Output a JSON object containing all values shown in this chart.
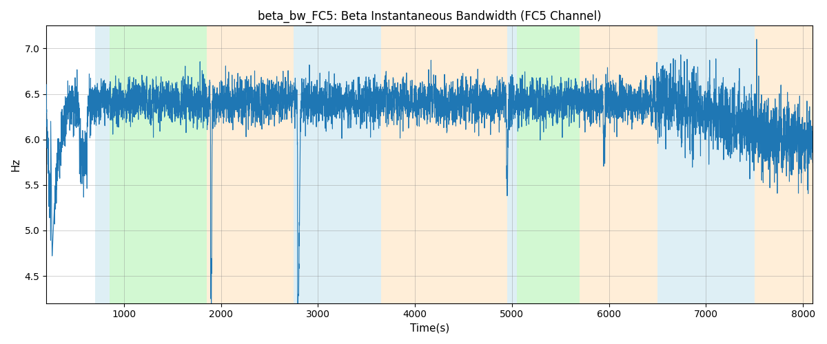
{
  "title": "beta_bw_FC5: Beta Instantaneous Bandwidth (FC5 Channel)",
  "xlabel": "Time(s)",
  "ylabel": "Hz",
  "xlim": [
    200,
    8100
  ],
  "ylim": [
    4.2,
    7.25
  ],
  "line_color": "#1f77b4",
  "line_width": 0.8,
  "background_color": "#ffffff",
  "figsize": [
    12,
    5
  ],
  "dpi": 100,
  "bands": [
    {
      "xmin": 700,
      "xmax": 850,
      "color": "#add8e6",
      "alpha": 0.4
    },
    {
      "xmin": 850,
      "xmax": 1850,
      "color": "#90ee90",
      "alpha": 0.4
    },
    {
      "xmin": 1850,
      "xmax": 2750,
      "color": "#ffd59e",
      "alpha": 0.4
    },
    {
      "xmin": 2750,
      "xmax": 3650,
      "color": "#add8e6",
      "alpha": 0.4
    },
    {
      "xmin": 3650,
      "xmax": 4950,
      "color": "#ffd59e",
      "alpha": 0.4
    },
    {
      "xmin": 4950,
      "xmax": 5050,
      "color": "#add8e6",
      "alpha": 0.4
    },
    {
      "xmin": 5050,
      "xmax": 5700,
      "color": "#90ee90",
      "alpha": 0.4
    },
    {
      "xmin": 5700,
      "xmax": 6500,
      "color": "#ffd59e",
      "alpha": 0.4
    },
    {
      "xmin": 6500,
      "xmax": 7500,
      "color": "#add8e6",
      "alpha": 0.4
    },
    {
      "xmin": 7500,
      "xmax": 8100,
      "color": "#ffd59e",
      "alpha": 0.4
    }
  ],
  "t_start": 200,
  "t_end": 8100,
  "n_points": 7900,
  "seed": 7
}
